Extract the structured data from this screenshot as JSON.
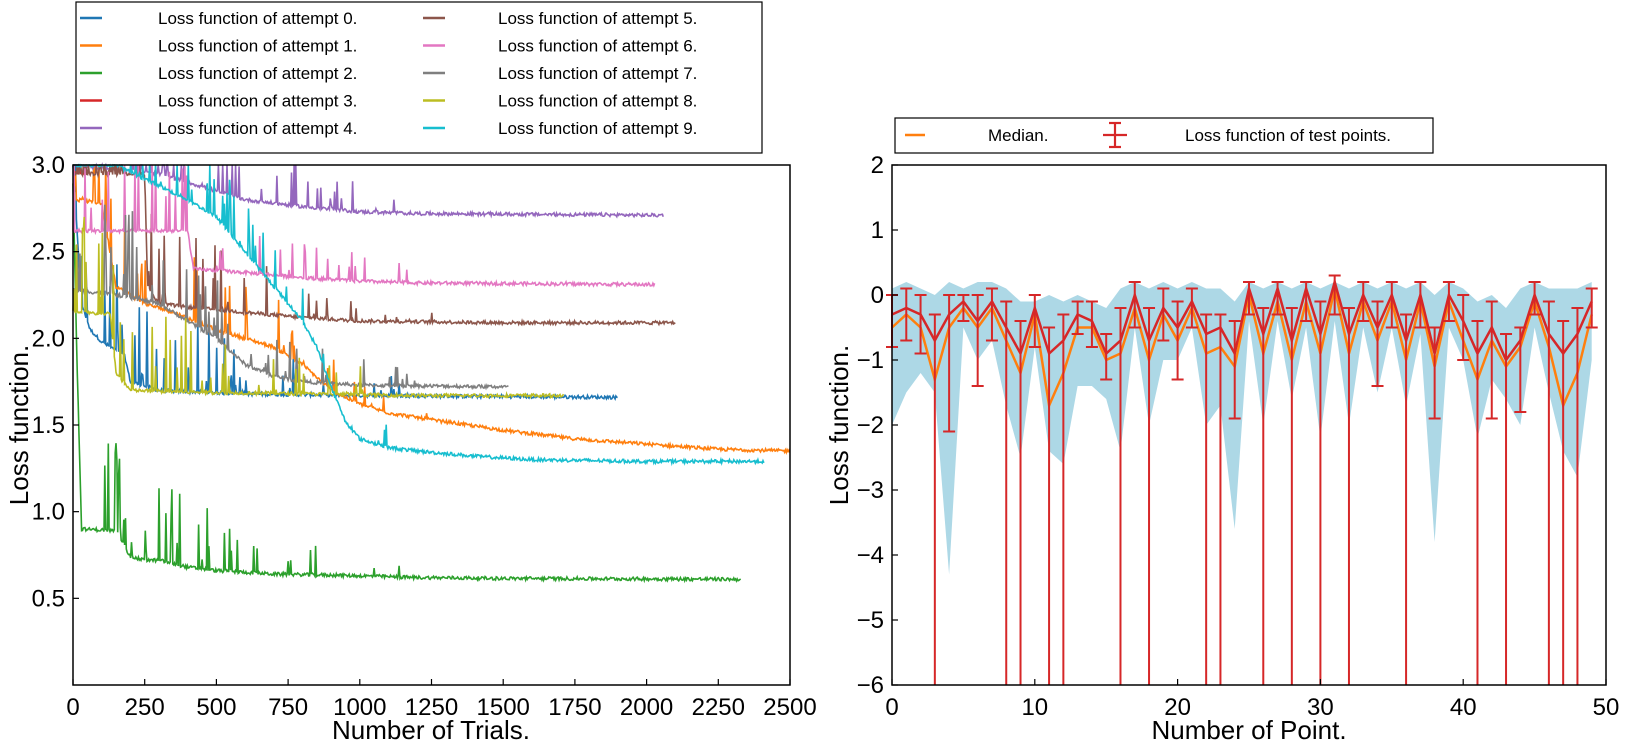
{
  "chart_data": [
    {
      "type": "line",
      "xlabel": "Number of Trials.",
      "ylabel": "Loss function.",
      "xlim": [
        0,
        2500
      ],
      "ylim": [
        0,
        3.0
      ],
      "x_ticks": [
        "0",
        "250",
        "500",
        "750",
        "1000",
        "1250",
        "1500",
        "1750",
        "2000",
        "2250",
        "2500"
      ],
      "y_ticks": [
        "0.5",
        "1.0",
        "1.5",
        "2.0",
        "2.5",
        "3.0"
      ],
      "legend": {
        "placement": "above-plot",
        "columns": 2
      },
      "series": [
        {
          "name": "Loss function of attempt 0.",
          "color": "#1f77b4",
          "end_trial": 1900,
          "points": [
            [
              0,
              3.0
            ],
            [
              30,
              2.2
            ],
            [
              60,
              2.05
            ],
            [
              100,
              1.98
            ],
            [
              180,
              1.9
            ],
            [
              200,
              1.75
            ],
            [
              300,
              1.7
            ],
            [
              600,
              1.68
            ],
            [
              1000,
              1.67
            ],
            [
              1900,
              1.66
            ]
          ]
        },
        {
          "name": "Loss function of attempt 1.",
          "color": "#ff7f0e",
          "end_trial": 2500,
          "points": [
            [
              0,
              3.0
            ],
            [
              10,
              2.8
            ],
            [
              100,
              2.78
            ],
            [
              150,
              2.3
            ],
            [
              250,
              2.2
            ],
            [
              350,
              2.15
            ],
            [
              500,
              2.05
            ],
            [
              700,
              1.95
            ],
            [
              800,
              1.85
            ],
            [
              900,
              1.7
            ],
            [
              1000,
              1.62
            ],
            [
              1100,
              1.57
            ],
            [
              1250,
              1.53
            ],
            [
              1500,
              1.47
            ],
            [
              1750,
              1.42
            ],
            [
              2000,
              1.39
            ],
            [
              2250,
              1.36
            ],
            [
              2500,
              1.35
            ]
          ]
        },
        {
          "name": "Loss function of attempt 2.",
          "color": "#2ca02c",
          "end_trial": 2330,
          "points": [
            [
              0,
              2.9
            ],
            [
              15,
              1.8
            ],
            [
              30,
              0.9
            ],
            [
              150,
              0.89
            ],
            [
              180,
              0.8
            ],
            [
              200,
              0.74
            ],
            [
              250,
              0.72
            ],
            [
              300,
              0.72
            ],
            [
              400,
              0.68
            ],
            [
              500,
              0.66
            ],
            [
              700,
              0.64
            ],
            [
              1000,
              0.63
            ],
            [
              1200,
              0.62
            ],
            [
              1500,
              0.615
            ],
            [
              2330,
              0.61
            ]
          ]
        },
        {
          "name": "Loss function of attempt 3.",
          "color": "#d62728",
          "end_trial": 50,
          "points": [
            [
              0,
              2.95
            ],
            [
              50,
              2.95
            ]
          ]
        },
        {
          "name": "Loss function of attempt 4.",
          "color": "#9467bd",
          "end_trial": 2060,
          "points": [
            [
              0,
              3.0
            ],
            [
              300,
              2.95
            ],
            [
              500,
              2.85
            ],
            [
              600,
              2.8
            ],
            [
              700,
              2.78
            ],
            [
              800,
              2.76
            ],
            [
              1000,
              2.73
            ],
            [
              1200,
              2.72
            ],
            [
              2060,
              2.71
            ]
          ]
        },
        {
          "name": "Loss function of attempt 5.",
          "color": "#8c564b",
          "end_trial": 2100,
          "points": [
            [
              0,
              2.95
            ],
            [
              250,
              2.95
            ],
            [
              260,
              2.3
            ],
            [
              300,
              2.2
            ],
            [
              400,
              2.18
            ],
            [
              600,
              2.15
            ],
            [
              800,
              2.12
            ],
            [
              1000,
              2.1
            ],
            [
              1500,
              2.09
            ],
            [
              2100,
              2.09
            ]
          ]
        },
        {
          "name": "Loss function of attempt 6.",
          "color": "#e377c2",
          "end_trial": 2030,
          "points": [
            [
              0,
              2.62
            ],
            [
              400,
              2.62
            ],
            [
              420,
              2.4
            ],
            [
              600,
              2.38
            ],
            [
              800,
              2.35
            ],
            [
              1000,
              2.33
            ],
            [
              1200,
              2.32
            ],
            [
              2030,
              2.31
            ]
          ]
        },
        {
          "name": "Loss function of attempt 7.",
          "color": "#7f7f7f",
          "end_trial": 1520,
          "points": [
            [
              0,
              2.28
            ],
            [
              150,
              2.25
            ],
            [
              300,
              2.2
            ],
            [
              500,
              2.0
            ],
            [
              600,
              1.85
            ],
            [
              700,
              1.78
            ],
            [
              800,
              1.75
            ],
            [
              1000,
              1.73
            ],
            [
              1520,
              1.72
            ]
          ]
        },
        {
          "name": "Loss function of attempt 8.",
          "color": "#bcbd22",
          "end_trial": 1710,
          "points": [
            [
              0,
              2.15
            ],
            [
              130,
              2.14
            ],
            [
              150,
              1.8
            ],
            [
              200,
              1.7
            ],
            [
              400,
              1.69
            ],
            [
              800,
              1.68
            ],
            [
              1200,
              1.67
            ],
            [
              1710,
              1.67
            ]
          ]
        },
        {
          "name": "Loss function of attempt 9.",
          "color": "#17becf",
          "end_trial": 2410,
          "points": [
            [
              0,
              3.0
            ],
            [
              150,
              3.0
            ],
            [
              400,
              2.8
            ],
            [
              500,
              2.7
            ],
            [
              600,
              2.5
            ],
            [
              700,
              2.3
            ],
            [
              800,
              2.1
            ],
            [
              850,
              1.95
            ],
            [
              900,
              1.72
            ],
            [
              950,
              1.52
            ],
            [
              1000,
              1.42
            ],
            [
              1100,
              1.37
            ],
            [
              1200,
              1.35
            ],
            [
              1400,
              1.32
            ],
            [
              1600,
              1.3
            ],
            [
              2000,
              1.29
            ],
            [
              2410,
              1.29
            ]
          ]
        }
      ]
    },
    {
      "type": "line",
      "xlabel": "Number of Point.",
      "ylabel": "Loss function.",
      "xlim": [
        0,
        50
      ],
      "ylim": [
        -6,
        2
      ],
      "x_ticks": [
        "0",
        "10",
        "20",
        "30",
        "40",
        "50"
      ],
      "y_ticks": [
        "−6",
        "−5",
        "−4",
        "−3",
        "−2",
        "−1",
        "0",
        "1",
        "2"
      ],
      "legend": {
        "placement": "above-plot",
        "entries": [
          "Median.",
          "Loss function of test points."
        ]
      },
      "x": [
        0,
        1,
        2,
        3,
        4,
        5,
        6,
        7,
        8,
        9,
        10,
        11,
        12,
        13,
        14,
        15,
        16,
        17,
        18,
        19,
        20,
        21,
        22,
        23,
        24,
        25,
        26,
        27,
        28,
        29,
        30,
        31,
        32,
        33,
        34,
        35,
        36,
        37,
        38,
        39,
        40,
        41,
        42,
        43,
        44,
        45,
        46,
        47,
        48,
        49
      ],
      "median": [
        -0.5,
        -0.3,
        -0.5,
        -1.3,
        -0.5,
        -0.2,
        -0.5,
        -0.2,
        -0.7,
        -1.2,
        -0.3,
        -1.7,
        -1.2,
        -0.5,
        -0.5,
        -1.0,
        -0.9,
        -0.2,
        -1.0,
        -0.3,
        -0.7,
        -0.2,
        -0.9,
        -0.8,
        -1.1,
        0.0,
        -0.9,
        -0.1,
        -1.0,
        -0.1,
        -0.9,
        0.1,
        -0.9,
        -0.1,
        -0.7,
        -0.1,
        -1.0,
        -0.1,
        -1.1,
        -0.1,
        -0.7,
        -1.3,
        -0.7,
        -1.1,
        -0.8,
        -0.1,
        -0.8,
        -1.7,
        -1.2,
        -0.3
      ],
      "mean": [
        -0.3,
        -0.2,
        -0.3,
        -0.7,
        -0.3,
        -0.1,
        -0.4,
        -0.1,
        -0.5,
        -0.9,
        -0.2,
        -0.9,
        -0.7,
        -0.3,
        -0.4,
        -0.9,
        -0.7,
        0.0,
        -0.7,
        -0.2,
        -0.5,
        -0.1,
        -0.6,
        -0.5,
        -0.9,
        0.1,
        -0.6,
        0.1,
        -0.7,
        0.1,
        -0.6,
        0.2,
        -0.6,
        0.0,
        -0.5,
        0.0,
        -0.7,
        0.0,
        -0.9,
        0.0,
        -0.4,
        -0.9,
        -0.5,
        -1.0,
        -0.7,
        0.0,
        -0.6,
        -0.9,
        -0.6,
        -0.1
      ],
      "err_low": [
        -0.8,
        -0.7,
        -0.9,
        -6.0,
        -2.1,
        -0.4,
        -1.4,
        -0.7,
        -6.0,
        -6.0,
        -0.8,
        -6.0,
        -6.0,
        -0.6,
        -0.8,
        -1.3,
        -6.0,
        -0.5,
        -6.0,
        -0.7,
        -1.3,
        -0.5,
        -6.0,
        -6.0,
        -1.9,
        -0.3,
        -6.0,
        -0.3,
        -6.0,
        -0.4,
        -6.0,
        -0.3,
        -6.0,
        -0.4,
        -1.4,
        -0.5,
        -6.0,
        -0.5,
        -1.9,
        -0.4,
        -1.0,
        -6.0,
        -1.9,
        -6.0,
        -1.8,
        -0.3,
        -6.0,
        -6.0,
        -6.0,
        -0.5
      ],
      "err_high": [
        0.0,
        0.1,
        0.0,
        -0.3,
        0.0,
        0.0,
        0.0,
        0.1,
        -0.1,
        -0.4,
        0.0,
        -0.5,
        -0.3,
        -0.1,
        -0.1,
        -0.6,
        -0.2,
        0.2,
        -0.2,
        0.1,
        -0.1,
        0.1,
        -0.3,
        -0.3,
        -0.4,
        0.2,
        -0.2,
        0.2,
        -0.2,
        0.2,
        -0.1,
        0.3,
        -0.2,
        0.2,
        -0.1,
        0.2,
        -0.3,
        0.2,
        -0.5,
        0.2,
        0.0,
        -0.4,
        -0.1,
        -0.6,
        -0.5,
        0.2,
        -0.1,
        -0.4,
        -0.2,
        0.1
      ],
      "band_low": [
        -2.0,
        -1.5,
        -1.2,
        -1.5,
        -4.3,
        -0.5,
        -1.0,
        -0.7,
        -1.7,
        -2.5,
        -0.8,
        -2.4,
        -2.6,
        -1.4,
        -1.4,
        -1.6,
        -2.4,
        -0.5,
        -2.0,
        -1.0,
        -1.0,
        -0.5,
        -2.0,
        -1.7,
        -3.6,
        -0.4,
        -2.0,
        -0.4,
        -1.6,
        -0.5,
        -2.2,
        -0.4,
        -2.0,
        -0.5,
        -1.5,
        -0.5,
        -1.7,
        -0.6,
        -3.8,
        -0.5,
        -1.0,
        -2.2,
        -1.3,
        -1.6,
        -2.0,
        -0.5,
        -1.5,
        -2.4,
        -2.8,
        -1.0
      ],
      "band_high": [
        0.1,
        0.2,
        0.1,
        0.0,
        0.2,
        0.1,
        0.2,
        0.2,
        0.1,
        -0.1,
        -0.1,
        0.0,
        -0.1,
        0.0,
        -0.1,
        -0.2,
        0.1,
        0.2,
        0.1,
        0.2,
        0.1,
        0.2,
        0.1,
        0.1,
        -0.1,
        0.2,
        0.1,
        0.2,
        0.1,
        0.2,
        0.1,
        0.2,
        0.1,
        0.2,
        0.1,
        0.2,
        0.1,
        0.2,
        0.0,
        0.2,
        0.1,
        -0.1,
        0.0,
        -0.2,
        0.1,
        0.2,
        0.1,
        0.1,
        0.1,
        0.2
      ],
      "colors": {
        "median": "#ff7f0e",
        "mean": "#d62728",
        "band": "#add8e6"
      }
    }
  ]
}
